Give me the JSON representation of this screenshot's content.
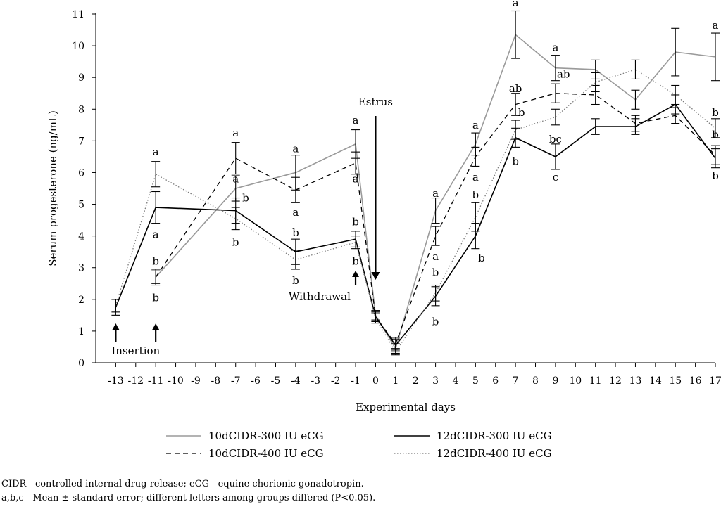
{
  "chart_data": {
    "type": "line",
    "xlabel": "Experimental days",
    "ylabel": "Serum progesterone (ng/mL)",
    "x": [
      -13,
      -11,
      -7,
      -4,
      -1,
      0,
      1,
      3,
      5,
      7,
      9,
      11,
      13,
      15,
      17
    ],
    "xlim": [
      -14,
      17
    ],
    "ylim": [
      0,
      11
    ],
    "xticks": [
      "-13",
      "-12",
      "-11",
      "-10",
      "-9",
      "-8",
      "-7",
      "-6",
      "-5",
      "-4",
      "-3",
      "-2",
      "-1",
      "0",
      "1",
      "2",
      "3",
      "4",
      "5",
      "6",
      "7",
      "8",
      "9",
      "10",
      "11",
      "12",
      "13",
      "14",
      "15",
      "16",
      "17"
    ],
    "yticks": [
      "0",
      "1",
      "2",
      "3",
      "4",
      "5",
      "6",
      "7",
      "8",
      "9",
      "10",
      "11"
    ],
    "grid": false,
    "legend_placement": "bottom",
    "series": [
      {
        "name": "10dCIDR-300 IU eCG",
        "style": "solid",
        "color": "#9a9a9a",
        "points": [
          [
            -11,
            2.7,
            0.25
          ],
          [
            -7,
            5.5,
            0.4
          ],
          [
            -4,
            6.0,
            0.55
          ],
          [
            -1,
            6.9,
            0.45
          ],
          [
            0,
            1.5,
            0.15
          ],
          [
            1,
            0.45,
            0.15
          ],
          [
            3,
            4.8,
            0.4
          ],
          [
            5,
            6.9,
            0.35
          ],
          [
            7,
            10.35,
            0.75
          ],
          [
            9,
            9.3,
            0.4
          ],
          [
            11,
            9.25,
            0.3
          ],
          [
            13,
            8.3,
            0.3
          ],
          [
            15,
            9.8,
            0.75
          ],
          [
            17,
            9.65,
            0.75
          ]
        ]
      },
      {
        "name": "10dCIDR-400 IU eCG",
        "style": "dashed",
        "color": "#000000",
        "points": [
          [
            -11,
            2.7,
            0.2
          ],
          [
            -7,
            6.45,
            0.5
          ],
          [
            -4,
            5.45,
            0.4
          ],
          [
            -1,
            6.3,
            0.35
          ],
          [
            0,
            1.45,
            0.15
          ],
          [
            1,
            0.6,
            0.2
          ],
          [
            3,
            4.0,
            0.3
          ],
          [
            5,
            6.5,
            0.3
          ],
          [
            7,
            8.15,
            0.35
          ],
          [
            9,
            8.5,
            0.3
          ],
          [
            11,
            8.45,
            0.3
          ],
          [
            13,
            7.55,
            0.25
          ],
          [
            15,
            7.8,
            0.25
          ],
          [
            17,
            6.55,
            0.3
          ]
        ]
      },
      {
        "name": "12dCIDR-300 IU eCG",
        "style": "solid",
        "color": "#000000",
        "points": [
          [
            -13,
            1.75,
            0.25
          ],
          [
            -11,
            4.9,
            0.5
          ],
          [
            -7,
            4.8,
            0.4
          ],
          [
            -4,
            3.5,
            0.4
          ],
          [
            -1,
            3.9,
            0.25
          ],
          [
            0,
            1.45,
            0.15
          ],
          [
            1,
            0.55,
            0.2
          ],
          [
            3,
            2.1,
            0.3
          ],
          [
            5,
            4.0,
            0.4
          ],
          [
            7,
            7.1,
            0.3
          ],
          [
            9,
            6.5,
            0.4
          ],
          [
            11,
            7.45,
            0.25
          ],
          [
            13,
            7.45,
            0.25
          ],
          [
            15,
            8.15,
            0.3
          ],
          [
            17,
            6.45,
            0.3
          ]
        ]
      },
      {
        "name": "12dCIDR-400 IU eCG",
        "style": "dotted",
        "color": "#7a7a7a",
        "points": [
          [
            -13,
            1.8,
            0.2
          ],
          [
            -11,
            5.95,
            0.4
          ],
          [
            -7,
            4.55,
            0.35
          ],
          [
            -4,
            3.25,
            0.3
          ],
          [
            -1,
            3.8,
            0.2
          ],
          [
            0,
            1.4,
            0.15
          ],
          [
            1,
            0.35,
            0.1
          ],
          [
            3,
            2.2,
            0.25
          ],
          [
            5,
            4.6,
            0.45
          ],
          [
            7,
            7.35,
            0.3
          ],
          [
            9,
            7.75,
            0.25
          ],
          [
            11,
            8.85,
            0.3
          ],
          [
            13,
            9.25,
            0.3
          ],
          [
            15,
            8.45,
            0.3
          ],
          [
            17,
            7.4,
            0.3
          ]
        ]
      }
    ],
    "significance_letters": [
      {
        "x": -11,
        "y": 6.65,
        "text": "a"
      },
      {
        "x": -11,
        "y": 4.05,
        "text": "a"
      },
      {
        "x": -11,
        "y": 3.2,
        "text": "b"
      },
      {
        "x": -11,
        "y": 2.05,
        "text": "b"
      },
      {
        "x": -7,
        "y": 7.25,
        "text": "a"
      },
      {
        "x": -7,
        "y": 5.8,
        "text": "a"
      },
      {
        "x": -6.5,
        "y": 5.2,
        "text": "b"
      },
      {
        "x": -7,
        "y": 3.8,
        "text": "b"
      },
      {
        "x": -4,
        "y": 6.75,
        "text": "a"
      },
      {
        "x": -4,
        "y": 4.75,
        "text": "a"
      },
      {
        "x": -4,
        "y": 4.1,
        "text": "b"
      },
      {
        "x": -4,
        "y": 2.6,
        "text": "b"
      },
      {
        "x": -1,
        "y": 7.65,
        "text": "a"
      },
      {
        "x": -1,
        "y": 5.8,
        "text": "a"
      },
      {
        "x": -1,
        "y": 4.45,
        "text": "b"
      },
      {
        "x": -1,
        "y": 3.2,
        "text": "b"
      },
      {
        "x": 3,
        "y": 5.35,
        "text": "a"
      },
      {
        "x": 3,
        "y": 3.35,
        "text": "a"
      },
      {
        "x": 3,
        "y": 2.85,
        "text": "b"
      },
      {
        "x": 3,
        "y": 1.3,
        "text": "b"
      },
      {
        "x": 5,
        "y": 7.5,
        "text": "a"
      },
      {
        "x": 5,
        "y": 5.85,
        "text": "a"
      },
      {
        "x": 5,
        "y": 5.3,
        "text": "b"
      },
      {
        "x": 5.3,
        "y": 3.3,
        "text": "b"
      },
      {
        "x": 7,
        "y": 11.35,
        "text": "a"
      },
      {
        "x": 7,
        "y": 8.65,
        "text": "ab"
      },
      {
        "x": 7.3,
        "y": 7.9,
        "text": "b"
      },
      {
        "x": 7,
        "y": 6.35,
        "text": "b"
      },
      {
        "x": 9,
        "y": 9.95,
        "text": "a"
      },
      {
        "x": 9.4,
        "y": 9.1,
        "text": "ab"
      },
      {
        "x": 9,
        "y": 7.05,
        "text": "bc"
      },
      {
        "x": 9,
        "y": 5.85,
        "text": "c"
      },
      {
        "x": 17,
        "y": 10.65,
        "text": "a"
      },
      {
        "x": 17,
        "y": 7.9,
        "text": "b"
      },
      {
        "x": 17,
        "y": 7.2,
        "text": "b"
      },
      {
        "x": 17,
        "y": 5.9,
        "text": "b"
      }
    ],
    "annotations": [
      {
        "text": "Insertion",
        "kind": "label"
      },
      {
        "text": "Withdrawal",
        "kind": "label"
      },
      {
        "text": "Estrus",
        "kind": "label"
      }
    ]
  },
  "footnotes": [
    "CIDR - controlled internal drug release; eCG - equine chorionic gonadotropin.",
    "a,b,c - Mean ± standard error; different letters among groups differed (P<0.05)."
  ]
}
